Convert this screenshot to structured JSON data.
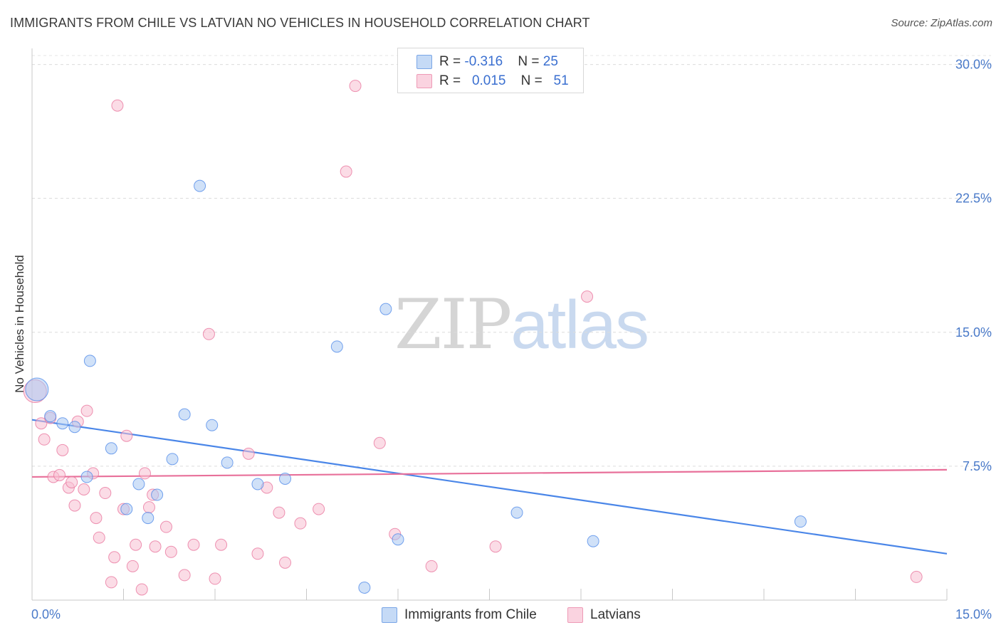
{
  "header": {
    "title": "IMMIGRANTS FROM CHILE VS LATVIAN NO VEHICLES IN HOUSEHOLD CORRELATION CHART",
    "source": "Source: ZipAtlas.com"
  },
  "watermark": {
    "zip": "ZIP",
    "atlas": "atlas"
  },
  "legend": {
    "rows": [
      {
        "r_label": "R = ",
        "r_value": "-0.316",
        "n_label": "N = ",
        "n_value": "25",
        "color": "#a9c8f2"
      },
      {
        "r_label": "R = ",
        "r_value": "0.015",
        "n_label": "N = ",
        "n_value": "51",
        "color": "#f7bfd1"
      }
    ]
  },
  "bottom_legend": {
    "items": [
      {
        "label": "Immigrants from Chile",
        "color": "#a9c8f2"
      },
      {
        "label": "Latvians",
        "color": "#f7bfd1"
      }
    ]
  },
  "chart_data": {
    "type": "scatter",
    "title": "IMMIGRANTS FROM CHILE VS LATVIAN NO VEHICLES IN HOUSEHOLD CORRELATION CHART",
    "xlabel": "",
    "ylabel": "No Vehicles in Household",
    "xlim": [
      0,
      15
    ],
    "ylim": [
      0,
      30.9
    ],
    "x_tick_labels": [
      "0.0%",
      "15.0%"
    ],
    "y_ticks": [
      7.5,
      15.0,
      22.5,
      30.0
    ],
    "y_tick_labels": [
      "7.5%",
      "15.0%",
      "22.5%",
      "30.0%"
    ],
    "grid": "horizontal dashed",
    "legend_position": "top-center",
    "series": [
      {
        "name": "Immigrants from Chile",
        "color": "#4a86e8",
        "fill": "#a9c8f2",
        "trend": {
          "x": [
            0,
            15
          ],
          "y": [
            10.1,
            2.6
          ]
        },
        "points": [
          {
            "x": 0.08,
            "y": 11.8,
            "big": true
          },
          {
            "x": 0.3,
            "y": 10.3
          },
          {
            "x": 0.5,
            "y": 9.9
          },
          {
            "x": 0.7,
            "y": 9.7
          },
          {
            "x": 0.95,
            "y": 13.4
          },
          {
            "x": 0.9,
            "y": 6.9
          },
          {
            "x": 1.3,
            "y": 8.5
          },
          {
            "x": 1.55,
            "y": 5.1
          },
          {
            "x": 1.75,
            "y": 6.5
          },
          {
            "x": 1.9,
            "y": 4.6
          },
          {
            "x": 2.05,
            "y": 5.9
          },
          {
            "x": 2.3,
            "y": 7.9
          },
          {
            "x": 2.5,
            "y": 10.4
          },
          {
            "x": 2.75,
            "y": 23.2
          },
          {
            "x": 2.95,
            "y": 9.8
          },
          {
            "x": 3.2,
            "y": 7.7
          },
          {
            "x": 3.7,
            "y": 6.5
          },
          {
            "x": 4.15,
            "y": 6.8
          },
          {
            "x": 5.0,
            "y": 14.2
          },
          {
            "x": 5.45,
            "y": 0.7
          },
          {
            "x": 5.8,
            "y": 16.3
          },
          {
            "x": 6.0,
            "y": 3.4
          },
          {
            "x": 7.95,
            "y": 4.9
          },
          {
            "x": 9.2,
            "y": 3.3
          },
          {
            "x": 12.6,
            "y": 4.4
          }
        ]
      },
      {
        "name": "Latvians",
        "color": "#e8709a",
        "fill": "#f7bfd1",
        "trend": {
          "x": [
            0,
            15
          ],
          "y": [
            6.9,
            7.3
          ]
        },
        "points": [
          {
            "x": 0.05,
            "y": 11.7,
            "big": true
          },
          {
            "x": 0.15,
            "y": 9.9
          },
          {
            "x": 0.3,
            "y": 10.2
          },
          {
            "x": 0.2,
            "y": 9.0
          },
          {
            "x": 0.35,
            "y": 6.9
          },
          {
            "x": 0.45,
            "y": 7.0
          },
          {
            "x": 0.5,
            "y": 8.4
          },
          {
            "x": 0.6,
            "y": 6.3
          },
          {
            "x": 0.65,
            "y": 6.6
          },
          {
            "x": 0.7,
            "y": 5.3
          },
          {
            "x": 0.85,
            "y": 6.2
          },
          {
            "x": 0.9,
            "y": 10.6
          },
          {
            "x": 0.75,
            "y": 10.0
          },
          {
            "x": 1.0,
            "y": 7.1
          },
          {
            "x": 1.05,
            "y": 4.6
          },
          {
            "x": 1.1,
            "y": 3.5
          },
          {
            "x": 1.2,
            "y": 6.0
          },
          {
            "x": 1.3,
            "y": 1.0
          },
          {
            "x": 1.35,
            "y": 2.4
          },
          {
            "x": 1.4,
            "y": 27.7
          },
          {
            "x": 1.5,
            "y": 5.1
          },
          {
            "x": 1.55,
            "y": 9.2
          },
          {
            "x": 1.65,
            "y": 1.9
          },
          {
            "x": 1.7,
            "y": 3.1
          },
          {
            "x": 1.8,
            "y": 0.6
          },
          {
            "x": 1.85,
            "y": 7.1
          },
          {
            "x": 1.92,
            "y": 5.2
          },
          {
            "x": 1.98,
            "y": 5.9
          },
          {
            "x": 2.02,
            "y": 3.0
          },
          {
            "x": 2.2,
            "y": 4.1
          },
          {
            "x": 2.28,
            "y": 2.7
          },
          {
            "x": 2.5,
            "y": 1.4
          },
          {
            "x": 2.65,
            "y": 3.1
          },
          {
            "x": 2.9,
            "y": 14.9
          },
          {
            "x": 3.0,
            "y": 1.2
          },
          {
            "x": 3.1,
            "y": 3.1
          },
          {
            "x": 3.55,
            "y": 8.2
          },
          {
            "x": 3.7,
            "y": 2.6
          },
          {
            "x": 3.85,
            "y": 6.3
          },
          {
            "x": 4.05,
            "y": 4.9
          },
          {
            "x": 4.15,
            "y": 2.1
          },
          {
            "x": 4.4,
            "y": 4.3
          },
          {
            "x": 4.7,
            "y": 5.1
          },
          {
            "x": 5.15,
            "y": 24.0
          },
          {
            "x": 5.3,
            "y": 28.8
          },
          {
            "x": 5.7,
            "y": 8.8
          },
          {
            "x": 5.95,
            "y": 3.7
          },
          {
            "x": 6.55,
            "y": 1.9
          },
          {
            "x": 7.6,
            "y": 3.0
          },
          {
            "x": 9.1,
            "y": 17.0
          },
          {
            "x": 14.5,
            "y": 1.3
          }
        ]
      }
    ]
  }
}
